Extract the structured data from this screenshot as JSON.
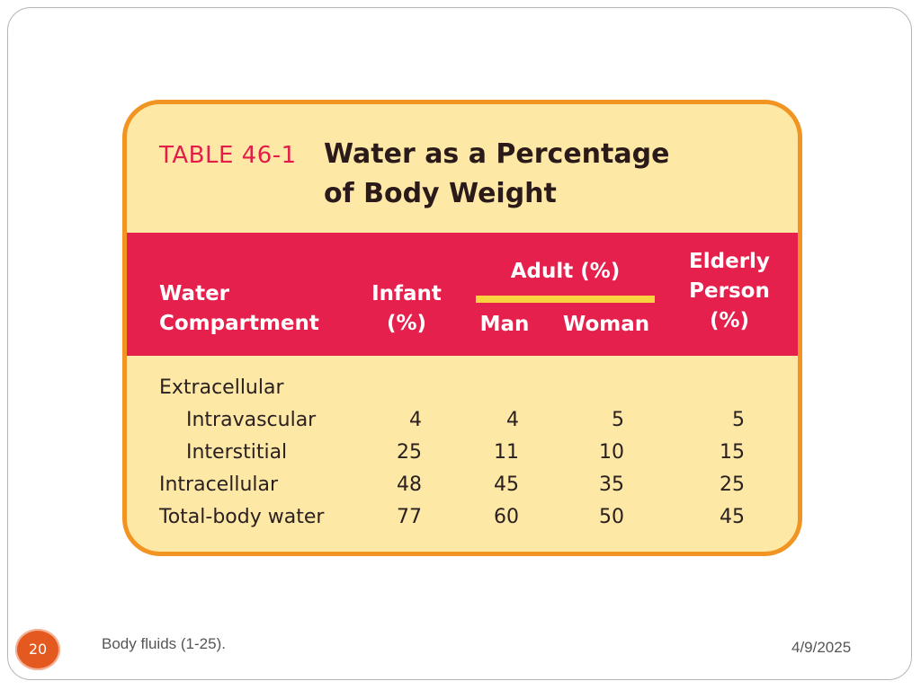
{
  "table": {
    "number": "TABLE 46-1",
    "title_line1": "Water as a Percentage",
    "title_line2": "of Body Weight",
    "headers": {
      "compartment_line1": "Water",
      "compartment_line2": "Compartment",
      "infant_line1": "Infant",
      "infant_line2": "(%)",
      "adult_group": "Adult (%)",
      "man": "Man",
      "woman": "Woman",
      "elderly_line1": "Elderly",
      "elderly_line2": "Person",
      "elderly_line3": "(%)"
    },
    "rows": [
      {
        "label": "Extracellular",
        "infant": "",
        "man": "",
        "woman": "",
        "elderly": ""
      },
      {
        "label": "Intravascular",
        "infant": "4",
        "man": "4",
        "woman": "5",
        "elderly": "5"
      },
      {
        "label": "Interstitial",
        "infant": "25",
        "man": "11",
        "woman": "10",
        "elderly": "15"
      },
      {
        "label": "Intracellular",
        "infant": "48",
        "man": "45",
        "woman": "35",
        "elderly": "25"
      },
      {
        "label": "Total-body water",
        "infant": "77",
        "man": "60",
        "woman": "50",
        "elderly": "45"
      }
    ]
  },
  "footer": {
    "slide_number": "20",
    "caption": "Body fluids (1-25).",
    "date": "4/9/2025"
  },
  "colors": {
    "card_fill": "#fee8a6",
    "card_border": "#f29422",
    "header_band": "#e5204d",
    "adult_bar": "#fad440",
    "badge": "#e4591f"
  }
}
